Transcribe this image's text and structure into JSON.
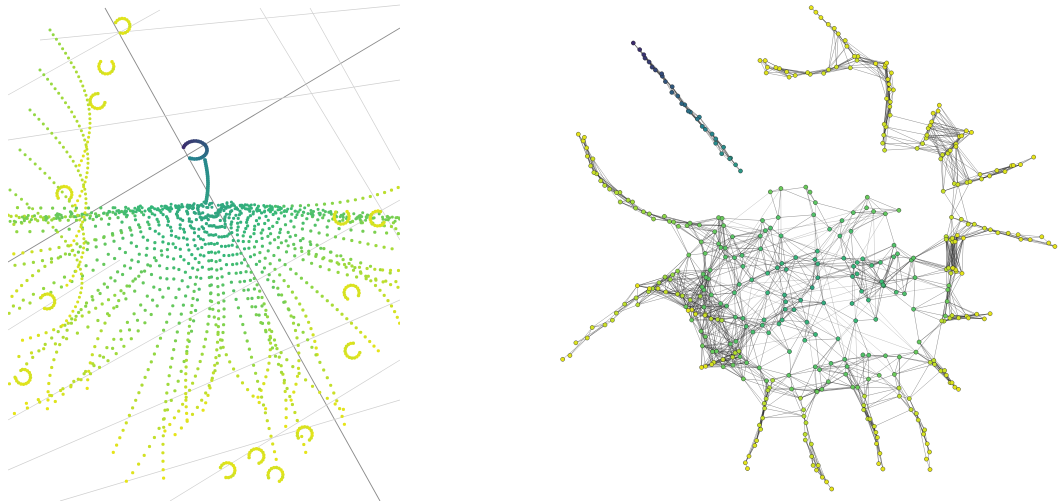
{
  "figure": {
    "panels": [
      {
        "id": "left",
        "kind": "3d-point-cloud-projection"
      },
      {
        "id": "right",
        "kind": "network-graph"
      }
    ],
    "colormap": "viridis",
    "colors": {
      "start": "#3b2a6b",
      "mid_teal": "#26828e",
      "mid_green": "#35b779",
      "light_green": "#8fd744",
      "end_yellow": "#e6e419",
      "edge": "#2b2b2b",
      "grid": "#9a9a9a",
      "background": "#ffffff"
    }
  }
}
